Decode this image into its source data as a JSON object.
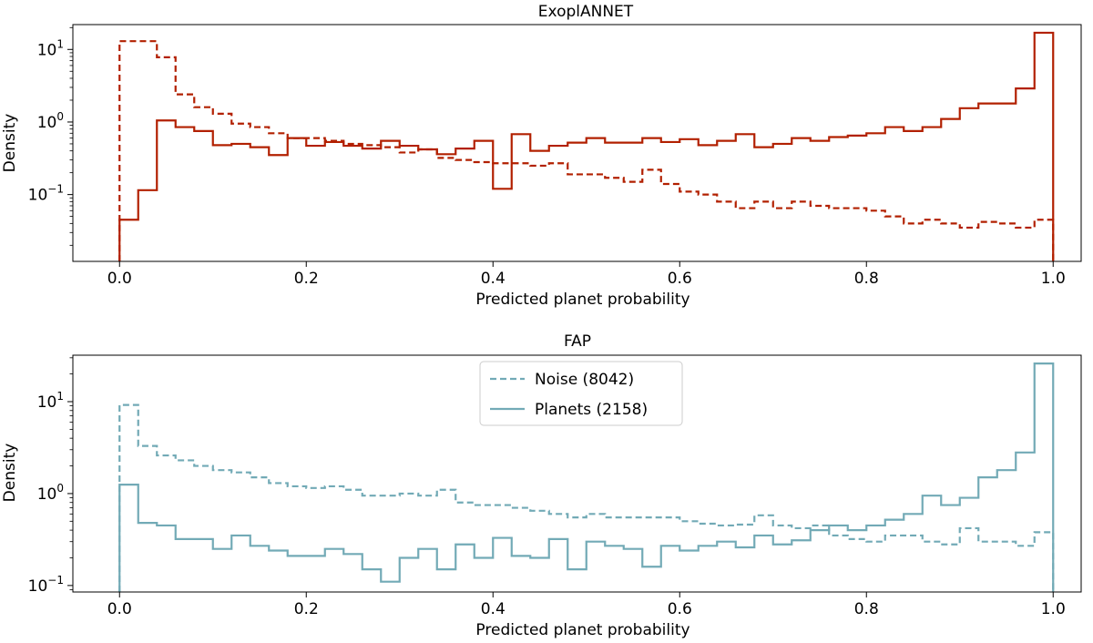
{
  "chart_data": [
    {
      "type": "histogram",
      "title": "ExoplANNET",
      "xlabel": "Predicted planet probability",
      "ylabel": "Density",
      "xlim": [
        -0.05,
        1.03
      ],
      "ylim": [
        0.012,
        22
      ],
      "yscale": "log",
      "xticks": [
        0.0,
        0.2,
        0.4,
        0.6,
        0.8,
        1.0
      ],
      "xtick_labels": [
        "0.0",
        "0.2",
        "0.4",
        "0.6",
        "0.8",
        "1.0"
      ],
      "yticks": [
        0.1,
        1,
        10
      ],
      "ytick_labels": [
        [
          "10",
          "−1"
        ],
        [
          "10",
          "0"
        ],
        [
          "10",
          "1"
        ]
      ],
      "color": "#b22000",
      "bin_edges": [
        0.0,
        0.02,
        0.04,
        0.06,
        0.08,
        0.1,
        0.12,
        0.14,
        0.16,
        0.18,
        0.2,
        0.22,
        0.24,
        0.26,
        0.28,
        0.3,
        0.32,
        0.34,
        0.36,
        0.38,
        0.4,
        0.42,
        0.44,
        0.46,
        0.48,
        0.5,
        0.52,
        0.54,
        0.56,
        0.58,
        0.6,
        0.62,
        0.64,
        0.66,
        0.68,
        0.7,
        0.72,
        0.74,
        0.76,
        0.78,
        0.8,
        0.82,
        0.84,
        0.86,
        0.88,
        0.9,
        0.92,
        0.94,
        0.96,
        0.98,
        1.0
      ],
      "series": [
        {
          "name": "Noise",
          "linestyle": "dashed",
          "values": [
            13,
            13,
            7.8,
            2.4,
            1.6,
            1.3,
            0.95,
            0.85,
            0.7,
            0.6,
            0.6,
            0.55,
            0.5,
            0.48,
            0.45,
            0.38,
            0.42,
            0.32,
            0.3,
            0.28,
            0.27,
            0.27,
            0.25,
            0.27,
            0.19,
            0.19,
            0.17,
            0.15,
            0.22,
            0.14,
            0.11,
            0.1,
            0.08,
            0.065,
            0.08,
            0.065,
            0.08,
            0.07,
            0.065,
            0.065,
            0.06,
            0.05,
            0.04,
            0.045,
            0.04,
            0.035,
            0.042,
            0.04,
            0.035,
            0.045
          ]
        },
        {
          "name": "Planets",
          "linestyle": "solid",
          "values": [
            0.045,
            0.115,
            1.05,
            0.85,
            0.75,
            0.48,
            0.5,
            0.45,
            0.35,
            0.6,
            0.47,
            0.53,
            0.47,
            0.43,
            0.55,
            0.47,
            0.42,
            0.36,
            0.43,
            0.55,
            0.12,
            0.68,
            0.4,
            0.47,
            0.52,
            0.6,
            0.52,
            0.52,
            0.6,
            0.53,
            0.58,
            0.48,
            0.55,
            0.68,
            0.45,
            0.5,
            0.6,
            0.55,
            0.62,
            0.65,
            0.7,
            0.85,
            0.75,
            0.85,
            1.1,
            1.55,
            1.8,
            1.8,
            2.9,
            17
          ]
        }
      ]
    },
    {
      "type": "histogram",
      "title": "FAP",
      "xlabel": "Predicted planet probability",
      "ylabel": "Density",
      "xlim": [
        -0.05,
        1.03
      ],
      "ylim": [
        0.085,
        32
      ],
      "yscale": "log",
      "xticks": [
        0.0,
        0.2,
        0.4,
        0.6,
        0.8,
        1.0
      ],
      "xtick_labels": [
        "0.0",
        "0.2",
        "0.4",
        "0.6",
        "0.8",
        "1.0"
      ],
      "yticks": [
        0.1,
        1,
        10
      ],
      "ytick_labels": [
        [
          "10",
          "−1"
        ],
        [
          "10",
          "0"
        ],
        [
          "10",
          "1"
        ]
      ],
      "color": "#72aab6",
      "legend": {
        "location": "upper center",
        "entries": [
          "Noise (8042)",
          "Planets (2158)"
        ]
      },
      "bin_edges": [
        0.0,
        0.02,
        0.04,
        0.06,
        0.08,
        0.1,
        0.12,
        0.14,
        0.16,
        0.18,
        0.2,
        0.22,
        0.24,
        0.26,
        0.28,
        0.3,
        0.32,
        0.34,
        0.36,
        0.38,
        0.4,
        0.42,
        0.44,
        0.46,
        0.48,
        0.5,
        0.52,
        0.54,
        0.56,
        0.58,
        0.6,
        0.62,
        0.64,
        0.66,
        0.68,
        0.7,
        0.72,
        0.74,
        0.76,
        0.78,
        0.8,
        0.82,
        0.84,
        0.86,
        0.88,
        0.9,
        0.92,
        0.94,
        0.96,
        0.98,
        1.0
      ],
      "series": [
        {
          "name": "Noise (8042)",
          "linestyle": "dashed",
          "values": [
            9.2,
            3.3,
            2.6,
            2.3,
            2.0,
            1.8,
            1.7,
            1.5,
            1.3,
            1.2,
            1.15,
            1.2,
            1.1,
            0.95,
            0.95,
            1.0,
            0.95,
            1.1,
            0.8,
            0.75,
            0.75,
            0.7,
            0.65,
            0.6,
            0.55,
            0.6,
            0.55,
            0.55,
            0.55,
            0.55,
            0.5,
            0.47,
            0.45,
            0.46,
            0.58,
            0.45,
            0.42,
            0.45,
            0.35,
            0.32,
            0.3,
            0.35,
            0.35,
            0.3,
            0.28,
            0.42,
            0.3,
            0.3,
            0.27,
            0.38
          ]
        },
        {
          "name": "Planets (2158)",
          "linestyle": "solid",
          "values": [
            1.25,
            0.48,
            0.45,
            0.32,
            0.32,
            0.25,
            0.35,
            0.27,
            0.24,
            0.21,
            0.21,
            0.25,
            0.22,
            0.15,
            0.11,
            0.2,
            0.25,
            0.15,
            0.28,
            0.2,
            0.33,
            0.21,
            0.2,
            0.32,
            0.15,
            0.3,
            0.27,
            0.25,
            0.16,
            0.27,
            0.24,
            0.27,
            0.3,
            0.26,
            0.35,
            0.28,
            0.31,
            0.4,
            0.45,
            0.4,
            0.45,
            0.52,
            0.6,
            0.95,
            0.75,
            0.9,
            1.5,
            1.8,
            2.8,
            26
          ]
        }
      ]
    }
  ]
}
